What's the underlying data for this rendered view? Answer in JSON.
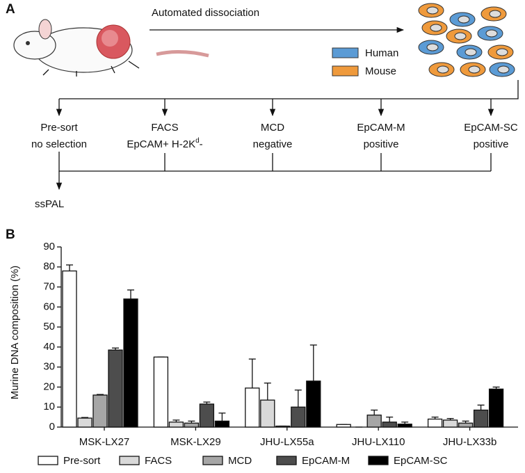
{
  "panel_a": {
    "label": "A",
    "arrow_label": "Automated dissociation",
    "legend": [
      "Human",
      "Mouse"
    ],
    "branches": [
      {
        "lines": [
          [
            "Pre-sort"
          ],
          [
            "no selection"
          ]
        ]
      },
      {
        "lines": [
          [
            "FACS"
          ],
          [
            "EpCAM+ H-2K",
            "d",
            "-"
          ]
        ]
      },
      {
        "lines": [
          [
            "MCD"
          ],
          [
            "negative"
          ]
        ]
      },
      {
        "lines": [
          [
            "EpCAM-M"
          ],
          [
            "positive"
          ]
        ]
      },
      {
        "lines": [
          [
            "EpCAM-SC"
          ],
          [
            "positive"
          ]
        ]
      }
    ],
    "output": "ssPAL"
  },
  "panel_b_label": "B",
  "chart_data": {
    "type": "bar",
    "y_label": "Murine DNA composition (%)",
    "categories": [
      "MSK-LX27",
      "MSK-LX29",
      "JHU-LX55a",
      "JHU-LX110",
      "JHU-LX33b"
    ],
    "series": [
      {
        "name": "Pre-sort",
        "color": "#ffffff",
        "values": [
          78,
          35,
          19.5,
          1.3,
          4
        ],
        "errors": [
          3,
          0,
          14.5,
          0,
          1
        ]
      },
      {
        "name": "FACS",
        "color": "#d9d9d9",
        "values": [
          4.5,
          2.5,
          13.5,
          0,
          3.5
        ],
        "errors": [
          0.3,
          1,
          8.5,
          0,
          0.8
        ]
      },
      {
        "name": "MCD",
        "color": "#a6a6a6",
        "values": [
          16,
          2,
          0.5,
          6,
          2
        ],
        "errors": [
          0.3,
          1,
          0,
          2.5,
          1
        ]
      },
      {
        "name": "EpCAM-M",
        "color": "#4d4d4d",
        "values": [
          38.5,
          11.5,
          10,
          2.5,
          8.5
        ],
        "errors": [
          1,
          1,
          8.5,
          2.5,
          2.5
        ]
      },
      {
        "name": "EpCAM-SC",
        "color": "#000000",
        "values": [
          64,
          3,
          23,
          1.5,
          19
        ],
        "errors": [
          4.5,
          4,
          18,
          1,
          1
        ]
      }
    ],
    "ylim": [
      0,
      90
    ],
    "yticks": [
      0,
      10,
      20,
      30,
      40,
      50,
      60,
      70,
      80,
      90
    ]
  }
}
